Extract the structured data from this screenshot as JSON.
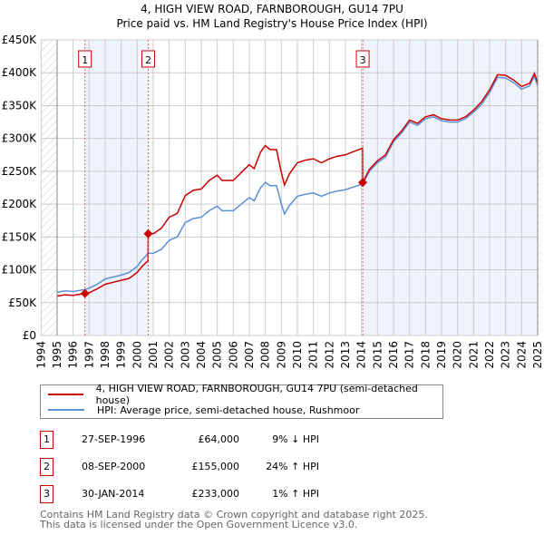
{
  "chart_data": {
    "type": "line",
    "title": "4, HIGH VIEW ROAD, FARNBOROUGH, GU14 7PU",
    "subtitle": "Price paid vs. HM Land Registry's House Price Index (HPI)",
    "xlim": [
      1994,
      2025
    ],
    "ylim": [
      0,
      450000
    ],
    "grid": true,
    "y_ticks": [
      {
        "v": 0,
        "label": "£0"
      },
      {
        "v": 50000,
        "label": "£50K"
      },
      {
        "v": 100000,
        "label": "£100K"
      },
      {
        "v": 150000,
        "label": "£150K"
      },
      {
        "v": 200000,
        "label": "£200K"
      },
      {
        "v": 250000,
        "label": "£250K"
      },
      {
        "v": 300000,
        "label": "£300K"
      },
      {
        "v": 350000,
        "label": "£350K"
      },
      {
        "v": 400000,
        "label": "£400K"
      },
      {
        "v": 450000,
        "label": "£450K"
      }
    ],
    "x_ticks": [
      "1994",
      "1995",
      "1996",
      "1997",
      "1998",
      "1999",
      "2000",
      "2001",
      "2002",
      "2003",
      "2004",
      "2005",
      "2006",
      "2007",
      "2008",
      "2009",
      "2010",
      "2011",
      "2012",
      "2013",
      "2014",
      "2015",
      "2016",
      "2017",
      "2018",
      "2019",
      "2020",
      "2021",
      "2022",
      "2023",
      "2024",
      "2025"
    ],
    "series": [
      {
        "name": "4, HIGH VIEW ROAD, FARNBOROUGH, GU14 7PU (semi-detached house)",
        "color": "#cc0000",
        "x": [
          1995.0,
          1995.5,
          1996.0,
          1996.74,
          1997.0,
          1997.5,
          1998.0,
          1998.5,
          1999.0,
          1999.5,
          2000.0,
          2000.3,
          2000.68,
          2000.69,
          2001.0,
          2001.5,
          2002.0,
          2002.5,
          2003.0,
          2003.5,
          2004.0,
          2004.5,
          2005.0,
          2005.3,
          2006.0,
          2006.5,
          2007.0,
          2007.3,
          2007.7,
          2008.0,
          2008.3,
          2008.7,
          2009.0,
          2009.2,
          2009.5,
          2010.0,
          2010.5,
          2011.0,
          2011.5,
          2012.0,
          2012.5,
          2013.0,
          2013.5,
          2014.07,
          2014.08,
          2014.5,
          2015.0,
          2015.5,
          2016.0,
          2016.5,
          2017.0,
          2017.5,
          2018.0,
          2018.5,
          2019.0,
          2019.5,
          2020.0,
          2020.5,
          2021.0,
          2021.5,
          2022.0,
          2022.5,
          2023.0,
          2023.5,
          2024.0,
          2024.5,
          2024.8,
          2025.0
        ],
        "y": [
          60000,
          62000,
          61000,
          64000,
          65000,
          71000,
          78000,
          81000,
          84000,
          87000,
          96000,
          105000,
          114000,
          155000,
          155000,
          163000,
          180000,
          186000,
          213000,
          221000,
          223000,
          236000,
          244000,
          236000,
          236000,
          248000,
          260000,
          254000,
          279000,
          289000,
          283000,
          283000,
          248000,
          229000,
          246000,
          263000,
          267000,
          269000,
          263000,
          269000,
          273000,
          275000,
          280000,
          285000,
          233000,
          253000,
          266000,
          275000,
          298000,
          311000,
          328000,
          323000,
          333000,
          336000,
          330000,
          328000,
          328000,
          333000,
          343000,
          356000,
          374000,
          397000,
          396000,
          389000,
          379000,
          384000,
          399000,
          384000
        ]
      },
      {
        "name": "HPI: Average price, semi-detached house, Rushmoor",
        "color": "#5b8fd6",
        "x": [
          1995.0,
          1995.5,
          1996.0,
          1996.74,
          1997.0,
          1997.5,
          1998.0,
          1998.5,
          1999.0,
          1999.5,
          2000.0,
          2000.3,
          2000.69,
          2001.0,
          2001.5,
          2002.0,
          2002.5,
          2003.0,
          2003.5,
          2004.0,
          2004.5,
          2005.0,
          2005.3,
          2006.0,
          2006.5,
          2007.0,
          2007.3,
          2007.7,
          2008.0,
          2008.3,
          2008.7,
          2009.0,
          2009.2,
          2009.5,
          2010.0,
          2010.5,
          2011.0,
          2011.5,
          2012.0,
          2012.5,
          2013.0,
          2013.5,
          2014.08,
          2014.5,
          2015.0,
          2015.5,
          2016.0,
          2016.5,
          2017.0,
          2017.5,
          2018.0,
          2018.5,
          2019.0,
          2019.5,
          2020.0,
          2020.5,
          2021.0,
          2021.5,
          2022.0,
          2022.5,
          2023.0,
          2023.5,
          2024.0,
          2024.5,
          2024.8,
          2025.0
        ],
        "y": [
          66000,
          68000,
          67000,
          70000,
          72000,
          78000,
          86000,
          89000,
          92000,
          96000,
          105000,
          115000,
          125000,
          125000,
          131000,
          145000,
          150000,
          172000,
          178000,
          180000,
          190000,
          197000,
          190000,
          190000,
          200000,
          210000,
          205000,
          225000,
          233000,
          228000,
          228000,
          200000,
          185000,
          198000,
          212000,
          215000,
          217000,
          212000,
          217000,
          220000,
          222000,
          226000,
          231000,
          250000,
          263000,
          272000,
          295000,
          308000,
          325000,
          320000,
          330000,
          333000,
          327000,
          325000,
          325000,
          330000,
          340000,
          352000,
          370000,
          393000,
          392000,
          385000,
          375000,
          380000,
          395000,
          380000
        ]
      }
    ],
    "sales": [
      {
        "label": "1",
        "x": 1996.74,
        "y": 64000
      },
      {
        "label": "2",
        "x": 2000.69,
        "y": 155000
      },
      {
        "label": "3",
        "x": 2014.08,
        "y": 233000
      }
    ],
    "shaded_ranges": [
      [
        1996.74,
        2000.69
      ],
      [
        2014.08,
        2025.0
      ]
    ]
  },
  "legend": {
    "property": "4, HIGH VIEW ROAD, FARNBOROUGH, GU14 7PU (semi-detached house)",
    "hpi": "HPI: Average price, semi-detached house, Rushmoor"
  },
  "sales_table": [
    {
      "num": "1",
      "date": "27-SEP-1996",
      "price": "£64,000",
      "hpi": "9% ↓ HPI"
    },
    {
      "num": "2",
      "date": "08-SEP-2000",
      "price": "£155,000",
      "hpi": "24% ↑ HPI"
    },
    {
      "num": "3",
      "date": "30-JAN-2014",
      "price": "£233,000",
      "hpi": "1% ↑ HPI"
    }
  ],
  "footer": {
    "line1": "Contains HM Land Registry data © Crown copyright and database right 2025.",
    "line2": "This data is licensed under the Open Government Licence v3.0."
  }
}
